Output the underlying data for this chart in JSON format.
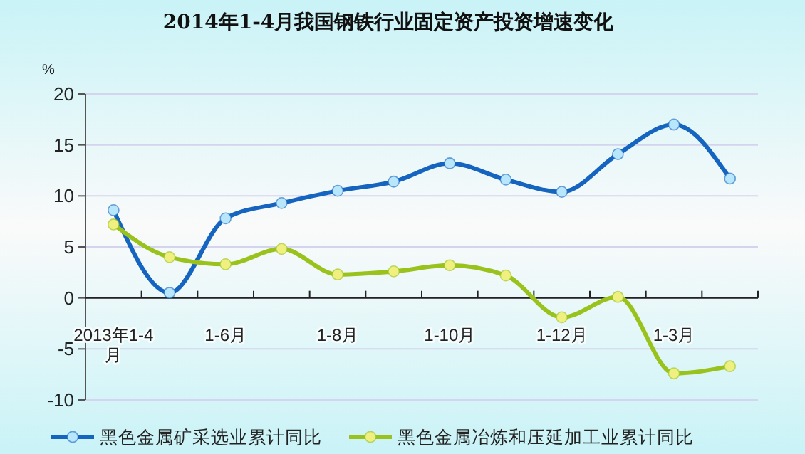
{
  "chart_data": {
    "type": "line",
    "title": "2014年1-4月我国钢铁行业固定资产投资增速变化",
    "ylabel": "%",
    "categories": [
      "2013年1-4月",
      null,
      "1-6月",
      null,
      "1-8月",
      null,
      "1-10月",
      null,
      "1-12月",
      null,
      "1-3月",
      null
    ],
    "series": [
      {
        "name": "黑色金属矿采选业累计同比",
        "color": "#1565c0",
        "values": [
          8.6,
          0.5,
          7.8,
          9.3,
          10.5,
          11.4,
          13.2,
          11.6,
          10.4,
          14.1,
          17.0,
          11.7
        ]
      },
      {
        "name": "黑色金属冶炼和压延加工业累计同比",
        "color": "#99c31c",
        "values": [
          7.2,
          4.0,
          3.3,
          4.8,
          2.3,
          2.6,
          3.2,
          2.2,
          -1.9,
          0.1,
          -7.4,
          -6.7
        ]
      }
    ],
    "ylim": [
      -10,
      20
    ],
    "yticks": [
      -10,
      -5,
      0,
      5,
      10,
      15,
      20
    ],
    "grid": "y",
    "legend": "bottom",
    "marker": "circle",
    "line_style": "solid"
  }
}
